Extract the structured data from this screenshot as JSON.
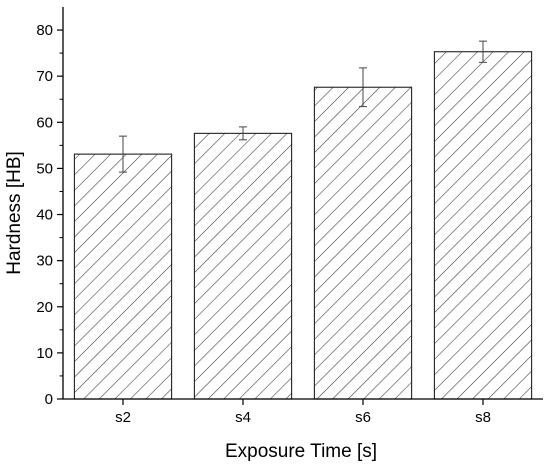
{
  "chart_data": {
    "type": "bar",
    "xlabel": "Exposure Time [s]",
    "ylabel": "Hardness [HB]",
    "categories": [
      "s2",
      "s4",
      "s6",
      "s8"
    ],
    "values": [
      53.1,
      57.6,
      67.6,
      75.3
    ],
    "errors": [
      3.9,
      1.4,
      4.2,
      2.3
    ],
    "ylim": [
      0,
      85
    ],
    "yticks": [
      0,
      10,
      20,
      30,
      40,
      50,
      60,
      70,
      80
    ],
    "yticks_minor": [
      5,
      15,
      25,
      35,
      45,
      55,
      65,
      75
    ],
    "grid": false,
    "legend": "none",
    "bar_fill": "hatched",
    "bar_color": "#ffffff",
    "hatch_color": "#333333",
    "axis_color": "#000000"
  }
}
